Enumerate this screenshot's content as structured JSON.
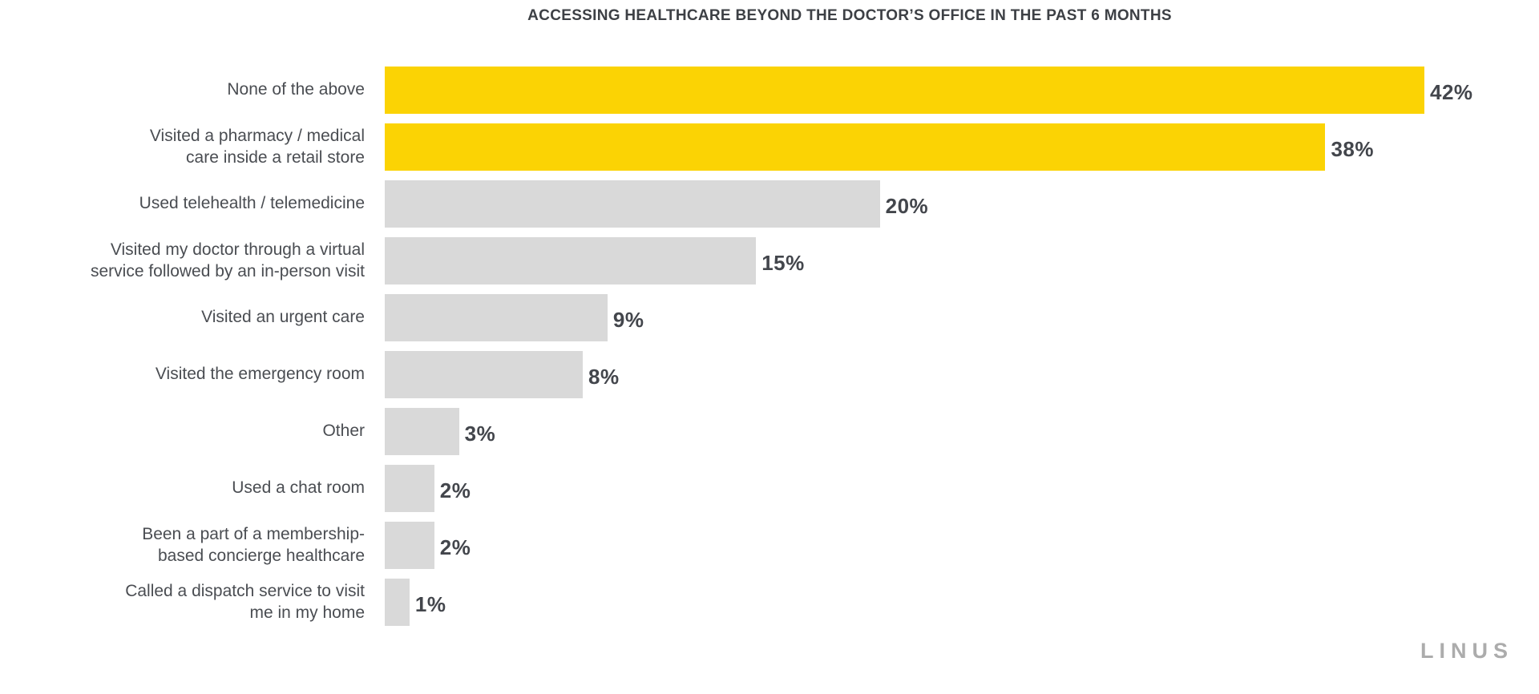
{
  "chart_data": {
    "type": "bar",
    "orientation": "horizontal",
    "title": "ACCESSING HEALTHCARE BEYOND THE DOCTOR’S OFFICE IN THE PAST 6 MONTHS",
    "categories": [
      "None of the above",
      "Visited a pharmacy / medical\ncare inside a retail store",
      "Used telehealth / telemedicine",
      "Visited my doctor through a virtual\nservice followed by an in-person visit",
      "Visited an urgent care",
      "Visited the emergency room",
      "Other",
      "Used a chat room",
      "Been a part of a membership-\nbased concierge healthcare",
      "Called a dispatch service to visit\nme in my home"
    ],
    "values": [
      42,
      38,
      20,
      15,
      9,
      8,
      3,
      2,
      2,
      1
    ],
    "value_suffix": "%",
    "xlabel": "",
    "ylabel": "",
    "xlim": [
      0,
      42
    ],
    "grid": false,
    "legend": false,
    "highlight_count": 2,
    "highlight_color": "#fbd304",
    "bar_color": "#d9d9d9"
  },
  "brand": {
    "wordmark": "LINUS"
  }
}
